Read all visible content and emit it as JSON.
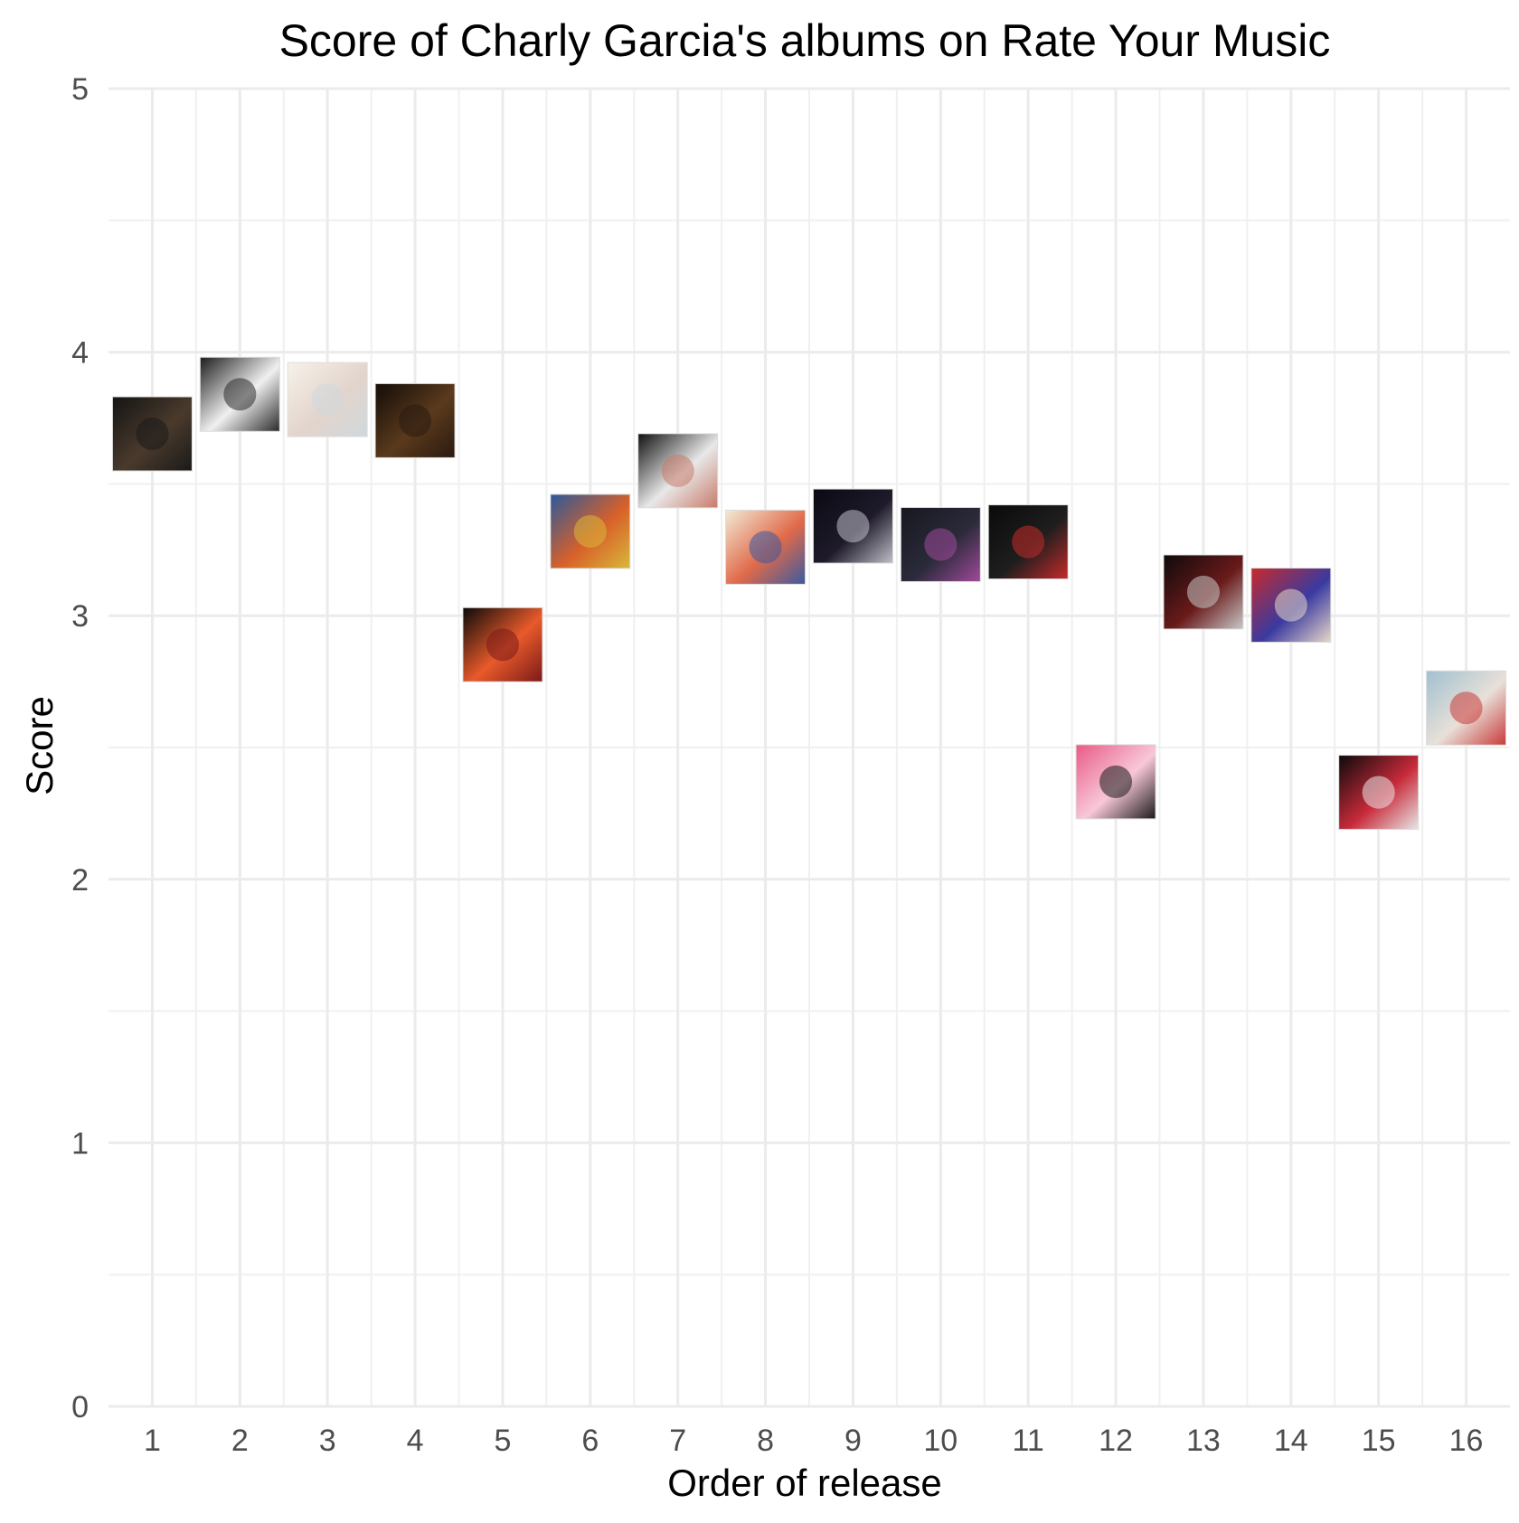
{
  "chart_data": {
    "type": "scatter",
    "title": "Score of Charly Garcia's albums on Rate Your Music",
    "xlabel": "Order of release",
    "ylabel": "Score",
    "xlim": [
      0.5,
      16.5
    ],
    "ylim": [
      0,
      5
    ],
    "x_ticks": [
      1,
      2,
      3,
      4,
      5,
      6,
      7,
      8,
      9,
      10,
      11,
      12,
      13,
      14,
      15,
      16
    ],
    "y_ticks": [
      0,
      1,
      2,
      3,
      4,
      5
    ],
    "grid": true,
    "legend": "none",
    "marker": "album cover thumbnail",
    "points": [
      {
        "x": 1,
        "y": 3.69,
        "colors": [
          "#141414",
          "#4a3a2c",
          "#1a1a1a"
        ]
      },
      {
        "x": 2,
        "y": 3.84,
        "colors": [
          "#1c1c1c",
          "#f0f0f0",
          "#2a2a2a"
        ]
      },
      {
        "x": 3,
        "y": 3.82,
        "colors": [
          "#f6f2ea",
          "#e3d4cc",
          "#d0d8dc"
        ]
      },
      {
        "x": 4,
        "y": 3.74,
        "colors": [
          "#120c08",
          "#5a3a1c",
          "#2a1a10"
        ]
      },
      {
        "x": 5,
        "y": 2.89,
        "colors": [
          "#0a0a0a",
          "#e85a2a",
          "#7a1a1a"
        ]
      },
      {
        "x": 6,
        "y": 3.32,
        "colors": [
          "#2a5a9a",
          "#d8602a",
          "#d8b83a"
        ]
      },
      {
        "x": 7,
        "y": 3.55,
        "colors": [
          "#101010",
          "#e8e8e8",
          "#c87a6a"
        ]
      },
      {
        "x": 8,
        "y": 3.26,
        "colors": [
          "#f2ead6",
          "#e06a4a",
          "#3a5aa0"
        ]
      },
      {
        "x": 9,
        "y": 3.34,
        "colors": [
          "#0a0a12",
          "#1e1a2a",
          "#c0c0c8"
        ]
      },
      {
        "x": 10,
        "y": 3.27,
        "colors": [
          "#181820",
          "#2a2a3a",
          "#a04a9a"
        ]
      },
      {
        "x": 11,
        "y": 3.28,
        "colors": [
          "#0a0a0a",
          "#1e1e1e",
          "#c82a2a"
        ]
      },
      {
        "x": 12,
        "y": 2.37,
        "colors": [
          "#e85a86",
          "#f8c8d8",
          "#1a1a1a"
        ]
      },
      {
        "x": 13,
        "y": 3.09,
        "colors": [
          "#0e0a0a",
          "#6a1a1a",
          "#c8c8c8"
        ]
      },
      {
        "x": 14,
        "y": 3.04,
        "colors": [
          "#c82a2a",
          "#3a3aa0",
          "#e8d8c8"
        ]
      },
      {
        "x": 15,
        "y": 2.33,
        "colors": [
          "#0a0a0a",
          "#c82a3a",
          "#e8e8e8"
        ]
      },
      {
        "x": 16,
        "y": 2.65,
        "colors": [
          "#a0c0d0",
          "#e8e0d8",
          "#c83a3a"
        ]
      }
    ]
  }
}
